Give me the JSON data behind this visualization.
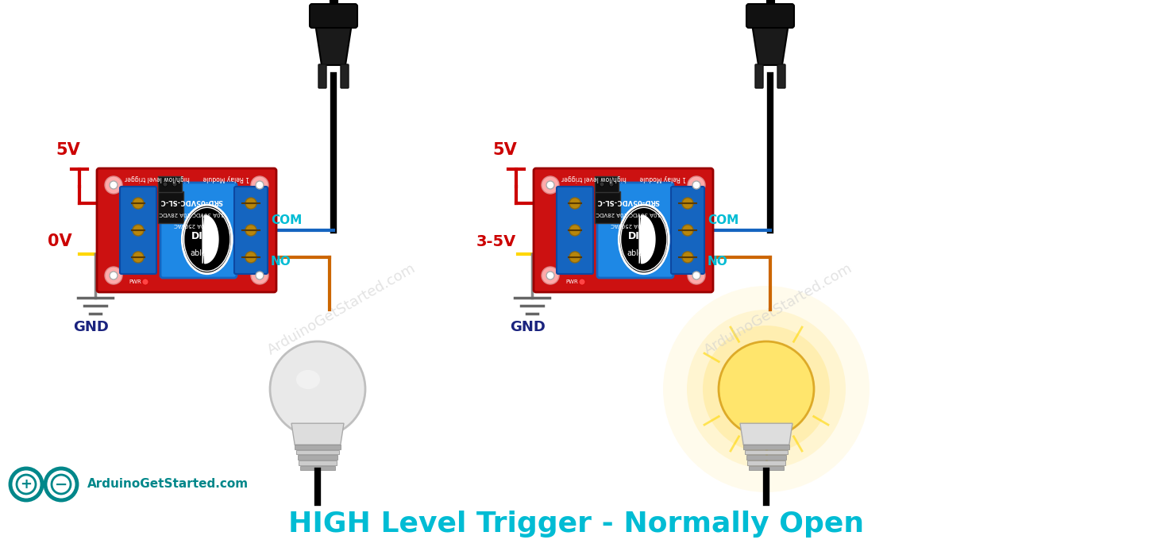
{
  "title": "HIGH Level Trigger - Normally Open",
  "title_color": "#00BCD4",
  "title_fontsize": 26,
  "title_fontweight": "bold",
  "background_color": "#FFFFFF",
  "fig_width": 14.52,
  "fig_height": 6.99,
  "watermark_text": "ArduinoGetStarted.com",
  "watermark_color": "#C0C0C0",
  "left_diagram": {
    "label_5v": "5V",
    "label_5v_color": "#CC0000",
    "label_0v": "0V",
    "label_0v_color": "#CC0000",
    "label_gnd": "GND",
    "label_gnd_color": "#1a237e",
    "label_com": "COM",
    "label_com_color": "#00BCD4",
    "label_no": "NO",
    "label_no_color": "#00BCD4"
  },
  "right_diagram": {
    "label_5v": "5V",
    "label_5v_color": "#CC0000",
    "label_3_5v": "3-5V",
    "label_3_5v_color": "#CC0000",
    "label_gnd": "GND",
    "label_gnd_color": "#1a237e",
    "label_com": "COM",
    "label_com_color": "#00BCD4",
    "label_no": "NO",
    "label_no_color": "#00BCD4"
  },
  "arduino_logo_color": "#00878A",
  "arduino_text": "ArduinoGetStarted.com"
}
